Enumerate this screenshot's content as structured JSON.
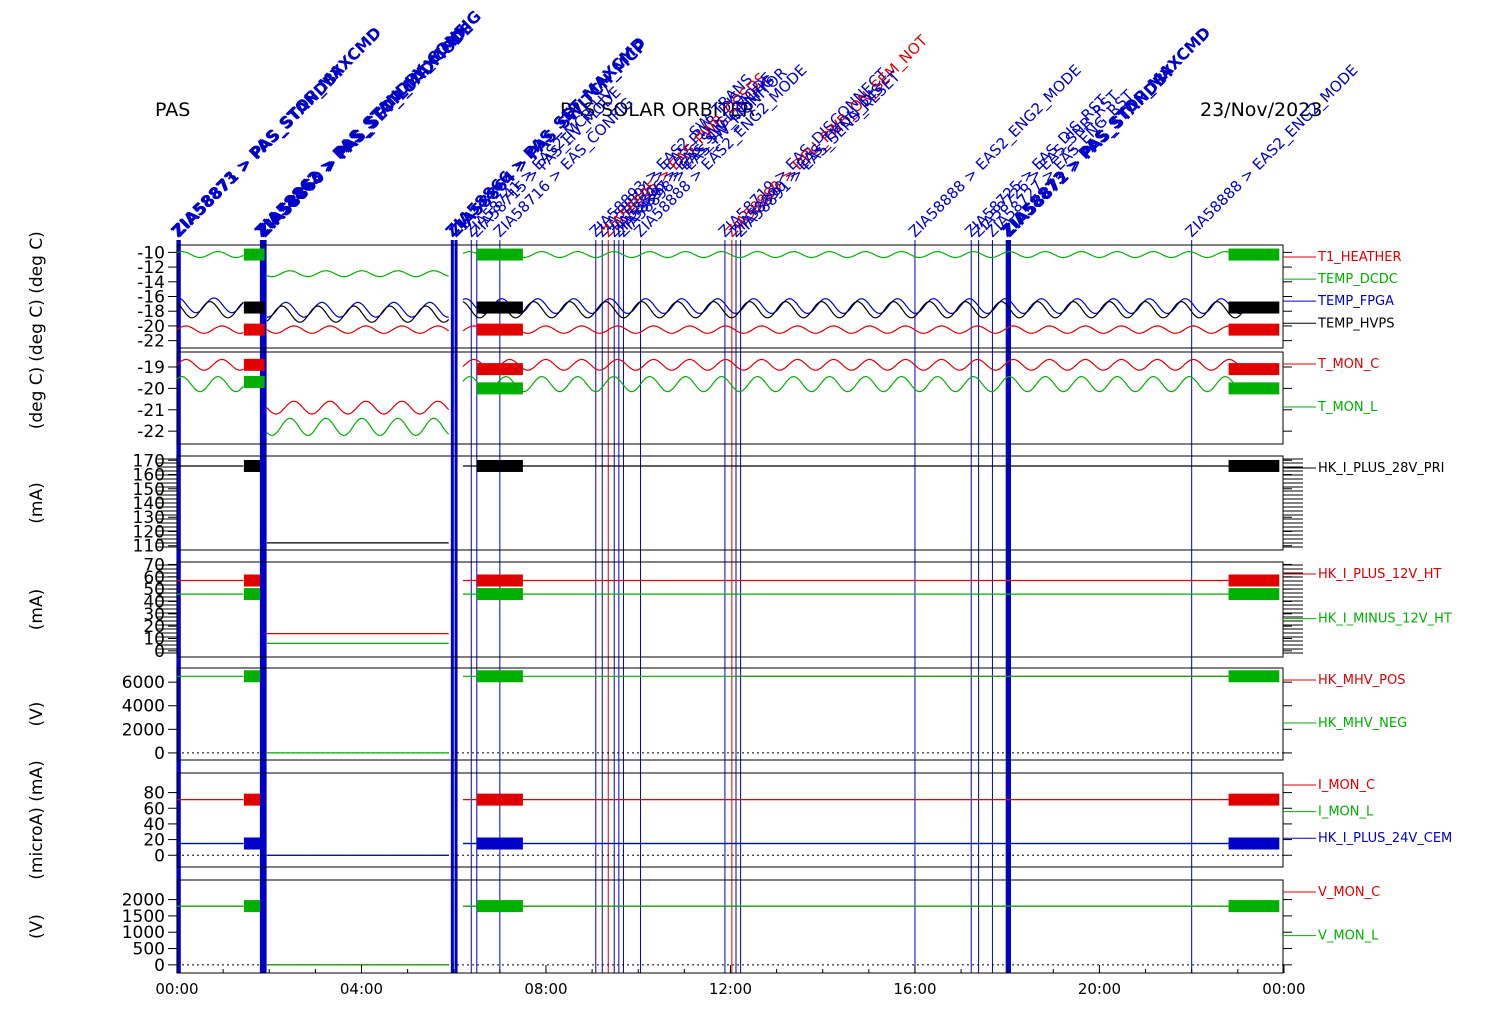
{
  "header": {
    "left": "PAS",
    "center": "PAS SOLAR ORBITER",
    "right": "23/Nov/2023"
  },
  "colors": {
    "red": "#e00000",
    "green": "#00b000",
    "blue": "#0000c8",
    "black": "#000000",
    "event_blue": "#0000c8",
    "event_red": "#e00000"
  },
  "chart_data": {
    "type": "line",
    "x_axis": {
      "unit": "hours",
      "range": [
        0,
        24
      ],
      "ticks": [
        0,
        4,
        8,
        12,
        16,
        20,
        24
      ],
      "tick_labels": [
        "00:00",
        "04:00",
        "08:00",
        "12:00",
        "16:00",
        "20:00",
        "00:00"
      ]
    },
    "events": [
      {
        "t": 0.02,
        "label": "ZIA58873 > PAS_STOP_MAXCMD",
        "color": "blue",
        "bold": true
      },
      {
        "t": 0.05,
        "label": "ZIA58871 > PAS_STANDBY",
        "color": "blue",
        "bold": true
      },
      {
        "t": 1.83,
        "label": "ZIA58862 > PAS_STANDBY_CONFIG",
        "color": "blue",
        "bold": true
      },
      {
        "t": 1.87,
        "label": "ZIA58863 > PAS_STOP_MAXCMD",
        "color": "blue",
        "bold": true
      },
      {
        "t": 1.91,
        "label": "ZIA58860 > PAS_SET_LOADMODE",
        "color": "blue",
        "bold": true
      },
      {
        "t": 5.97,
        "label": "ZIA58866 > PAS_SET_MAXCMD",
        "color": "blue",
        "bold": true
      },
      {
        "t": 6.05,
        "label": "ZIA58864 > PAS_SWITCH_MCP",
        "color": "blue",
        "bold": true
      },
      {
        "t": 6.38,
        "label": "ZIA58741 > EAS2_MCP_HV",
        "color": "blue",
        "bold": false
      },
      {
        "t": 6.5,
        "label": "ZIA58715 > PAS_HV_MODE",
        "color": "blue",
        "bold": false
      },
      {
        "t": 7.0,
        "label": "ZIA58716 > EAS_CONFIG",
        "color": "blue",
        "bold": false
      },
      {
        "t": 9.08,
        "label": "ZIA58893 > EAS2_SW_TRANS",
        "color": "blue",
        "bold": false
      },
      {
        "t": 9.22,
        "label": "ZIA58894 > EAS_PWR_DIS",
        "color": "blue",
        "bold": false
      },
      {
        "t": 9.35,
        "label": "ZIA58895 > EAS_PWR_CCSDS",
        "color": "red",
        "bold": false
      },
      {
        "t": 9.48,
        "label": "ZIA58896 > EAS_SNGL_MODE",
        "color": "blue",
        "bold": false
      },
      {
        "t": 9.58,
        "label": "ZIA58897 > EAS_SW_CONFIG",
        "color": "blue",
        "bold": false
      },
      {
        "t": 9.68,
        "label": "ZIA58898 > EAS_HV_MONITOR",
        "color": "blue",
        "bold": false
      },
      {
        "t": 10.05,
        "label": "ZIA58888 > EAS2_ENG2_MODE",
        "color": "blue",
        "bold": false
      },
      {
        "t": 11.88,
        "label": "ZIA58719 > EAS_DISCONNECT",
        "color": "blue",
        "bold": false
      },
      {
        "t": 12.03,
        "label": "ZIA58889 > DPU_PWR_ON_SEM_NOT",
        "color": "red",
        "bold": false
      },
      {
        "t": 12.12,
        "label": "ZIA58890 > EAS_TMON_DIS",
        "color": "blue",
        "bold": false
      },
      {
        "t": 12.22,
        "label": "ZIA58891 > EAS_SENS_RESET",
        "color": "blue",
        "bold": false
      },
      {
        "t": 16.0,
        "label": "ZIA58888 > EAS2_ENG2_MODE",
        "color": "blue",
        "bold": false
      },
      {
        "t": 17.22,
        "label": "ZIA58725 > EAS_DIS_RST",
        "color": "blue",
        "bold": false
      },
      {
        "t": 17.38,
        "label": "ZIA58726 > EAS_SNR_RST",
        "color": "blue",
        "bold": false
      },
      {
        "t": 17.68,
        "label": "ZIA58727 > EAS_ENG_RST",
        "color": "blue",
        "bold": false
      },
      {
        "t": 18.0,
        "label": "ZIA58873 > PAS_STOP_MAXCMD",
        "color": "blue",
        "bold": true
      },
      {
        "t": 18.05,
        "label": "ZIA58872 > PAS_STANDBY",
        "color": "blue",
        "bold": true
      },
      {
        "t": 22.0,
        "label": "ZIA58888 > EAS2_ENG2_MODE",
        "color": "blue",
        "bold": false
      }
    ],
    "panels": [
      {
        "ylabel": "(deg C) (deg C)",
        "ylim": [
          -23,
          -9
        ],
        "ticks": [
          -10,
          -12,
          -14,
          -16,
          -18,
          -20,
          -22
        ],
        "tick_labels": [
          "-10",
          "-12",
          "-14",
          "-16",
          "-18",
          "-20",
          "-22"
        ],
        "series": [
          {
            "name": "T1_HEATHER",
            "color": "red",
            "segments": [
              [
                0,
                1.45,
                -20.5,
                0.5
              ],
              [
                1.95,
                5.9,
                -20.5,
                0.5
              ],
              [
                6.2,
                23.1,
                -20.5,
                0.5
              ]
            ]
          },
          {
            "name": "TEMP_DCDC",
            "color": "green",
            "segments": [
              [
                0,
                1.45,
                -10.3,
                0.4
              ],
              [
                1.95,
                5.9,
                -12.9,
                0.4
              ],
              [
                6.2,
                23.1,
                -10.3,
                0.4
              ]
            ]
          },
          {
            "name": "TEMP_FPGA",
            "color": "blue",
            "segments": [
              [
                0,
                1.45,
                -17.2,
                1.0
              ],
              [
                1.95,
                5.9,
                -17.8,
                1.0
              ],
              [
                6.2,
                23.1,
                -17.3,
                1.0
              ]
            ]
          },
          {
            "name": "TEMP_HVPS",
            "color": "black",
            "segments": [
              [
                0,
                1.45,
                -17.8,
                1.1
              ],
              [
                1.95,
                5.9,
                -18.4,
                1.1
              ],
              [
                6.2,
                23.1,
                -17.8,
                1.1
              ]
            ]
          }
        ]
      },
      {
        "ylabel": "(deg C)",
        "ylim": [
          -22.6,
          -18.3
        ],
        "ticks": [
          -19,
          -20,
          -21,
          -22
        ],
        "tick_labels": [
          "-19",
          "-20",
          "-21",
          "-22"
        ],
        "series": [
          {
            "name": "T_MON_C",
            "color": "red",
            "segments": [
              [
                0,
                1.45,
                -18.9,
                0.25
              ],
              [
                1.95,
                5.9,
                -20.9,
                0.3
              ],
              [
                6.2,
                23.1,
                -18.9,
                0.25
              ]
            ]
          },
          {
            "name": "T_MON_L",
            "color": "green",
            "segments": [
              [
                0,
                1.45,
                -19.8,
                0.35
              ],
              [
                1.95,
                5.9,
                -21.8,
                0.4
              ],
              [
                6.2,
                23.1,
                -19.8,
                0.35
              ]
            ]
          }
        ]
      },
      {
        "ylabel": "(mA)",
        "ylim": [
          107,
          173
        ],
        "ticks": [
          170,
          160,
          150,
          140,
          130,
          120,
          110
        ],
        "tick_labels": [
          "170",
          "160",
          "150",
          "140",
          "130",
          "120",
          "110"
        ],
        "series": [
          {
            "name": "HK_I_PLUS_28V_PRI",
            "color": "black",
            "segments": [
              [
                0,
                1.45,
                166,
                0
              ],
              [
                1.95,
                5.9,
                112,
                0
              ],
              [
                6.2,
                23.1,
                166,
                0
              ]
            ]
          }
        ]
      },
      {
        "ylabel": "(mA)",
        "ylim": [
          -5,
          72
        ],
        "ticks": [
          70,
          60,
          50,
          40,
          30,
          20,
          10,
          0
        ],
        "tick_labels": [
          "70",
          "60",
          "50",
          "40",
          "30",
          "20",
          "10",
          "0"
        ],
        "series": [
          {
            "name": "HK_I_PLUS_12V_HT",
            "color": "red",
            "segments": [
              [
                0,
                1.45,
                57,
                0
              ],
              [
                1.95,
                5.9,
                14,
                0
              ],
              [
                6.2,
                23.1,
                57,
                0
              ]
            ]
          },
          {
            "name": "HK_I_MINUS_12V_HT",
            "color": "green",
            "segments": [
              [
                0,
                1.45,
                46,
                0
              ],
              [
                1.95,
                5.9,
                6,
                0
              ],
              [
                6.2,
                23.1,
                46,
                0
              ]
            ]
          }
        ]
      },
      {
        "ylabel": "(V)",
        "ylim": [
          -600,
          7200
        ],
        "ticks": [
          6000,
          4000,
          2000,
          0
        ],
        "tick_labels": [
          "6000",
          "4000",
          "2000",
          "0"
        ],
        "series": [
          {
            "name": "HK_MHV_POS",
            "color": "red",
            "segments": [
              [
                12.1,
                23.1,
                6500,
                0
              ]
            ]
          },
          {
            "name": "HK_MHV_NEG",
            "color": "green",
            "segments": [
              [
                0,
                1.45,
                6500,
                0
              ],
              [
                1.95,
                5.9,
                0,
                0
              ],
              [
                6.2,
                23.1,
                6500,
                0
              ]
            ]
          }
        ]
      },
      {
        "ylabel": "(microA) (mA)",
        "ylim": [
          -15,
          105
        ],
        "ticks": [
          80,
          60,
          40,
          20,
          0
        ],
        "tick_labels": [
          "80",
          "60",
          "40",
          "20",
          "0"
        ],
        "series": [
          {
            "name": "I_MON_C",
            "color": "red",
            "segments": [
              [
                0,
                1.45,
                71,
                0
              ],
              [
                1.95,
                5.9,
                0,
                0
              ],
              [
                6.2,
                23.1,
                71,
                0
              ]
            ]
          },
          {
            "name": "I_MON_L",
            "color": "green",
            "segments": [
              [
                0,
                1.45,
                15,
                0
              ],
              [
                1.95,
                5.9,
                0,
                0
              ],
              [
                6.2,
                23.1,
                15,
                0
              ]
            ]
          },
          {
            "name": "HK_I_PLUS_24V_CEM",
            "color": "blue",
            "segments": [
              [
                0,
                1.45,
                15,
                0
              ],
              [
                1.95,
                5.9,
                0,
                0
              ],
              [
                6.2,
                23.1,
                15,
                0
              ]
            ]
          }
        ]
      },
      {
        "ylabel": "(V)",
        "ylim": [
          -250,
          2600
        ],
        "ticks": [
          2000,
          1500,
          1000,
          500,
          0
        ],
        "tick_labels": [
          "2000",
          "1500",
          "1000",
          "500",
          "0"
        ],
        "series": [
          {
            "name": "V_MON_C",
            "color": "red",
            "segments": [
              [
                0,
                1.45,
                1800,
                0
              ],
              [
                1.95,
                5.9,
                0,
                0
              ],
              [
                6.2,
                23.1,
                1800,
                0
              ]
            ]
          },
          {
            "name": "V_MON_L",
            "color": "green",
            "segments": [
              [
                0,
                1.45,
                1800,
                0
              ],
              [
                1.95,
                5.9,
                0,
                0
              ],
              [
                6.2,
                23.1,
                1800,
                0
              ]
            ]
          }
        ]
      }
    ],
    "blocks": [
      {
        "panel": 0,
        "t0": 1.45,
        "t1": 1.9,
        "color": "green",
        "y": -10.3
      },
      {
        "panel": 0,
        "t0": 1.45,
        "t1": 1.9,
        "color": "black",
        "y": -17.5
      },
      {
        "panel": 0,
        "t0": 1.45,
        "t1": 1.9,
        "color": "red",
        "y": -20.5
      },
      {
        "panel": 0,
        "t0": 6.5,
        "t1": 7.5,
        "color": "green",
        "y": -10.3
      },
      {
        "panel": 0,
        "t0": 6.5,
        "t1": 7.5,
        "color": "black",
        "y": -17.5
      },
      {
        "panel": 0,
        "t0": 6.5,
        "t1": 7.5,
        "color": "red",
        "y": -20.5
      },
      {
        "panel": 0,
        "t0": 22.8,
        "t1": 23.9,
        "color": "green",
        "y": -10.3
      },
      {
        "panel": 0,
        "t0": 22.8,
        "t1": 23.9,
        "color": "black",
        "y": -17.5
      },
      {
        "panel": 0,
        "t0": 22.8,
        "t1": 23.9,
        "color": "red",
        "y": -20.5
      },
      {
        "panel": 1,
        "t0": 1.45,
        "t1": 1.9,
        "color": "red",
        "y": -18.9
      },
      {
        "panel": 1,
        "t0": 1.45,
        "t1": 1.9,
        "color": "green",
        "y": -19.7
      },
      {
        "panel": 1,
        "t0": 6.5,
        "t1": 7.5,
        "color": "red",
        "y": -19.1
      },
      {
        "panel": 1,
        "t0": 6.5,
        "t1": 7.5,
        "color": "green",
        "y": -20.0
      },
      {
        "panel": 1,
        "t0": 22.8,
        "t1": 23.9,
        "color": "red",
        "y": -19.1
      },
      {
        "panel": 1,
        "t0": 22.8,
        "t1": 23.9,
        "color": "green",
        "y": -20.0
      },
      {
        "panel": 2,
        "t0": 1.45,
        "t1": 1.8,
        "color": "black",
        "y": 166
      },
      {
        "panel": 2,
        "t0": 6.5,
        "t1": 7.5,
        "color": "black",
        "y": 166
      },
      {
        "panel": 2,
        "t0": 22.8,
        "t1": 23.9,
        "color": "black",
        "y": 166
      },
      {
        "panel": 3,
        "t0": 1.45,
        "t1": 1.8,
        "color": "red",
        "y": 57
      },
      {
        "panel": 3,
        "t0": 1.45,
        "t1": 1.8,
        "color": "green",
        "y": 46
      },
      {
        "panel": 3,
        "t0": 6.5,
        "t1": 7.5,
        "color": "red",
        "y": 57
      },
      {
        "panel": 3,
        "t0": 6.5,
        "t1": 7.5,
        "color": "green",
        "y": 46
      },
      {
        "panel": 3,
        "t0": 22.8,
        "t1": 23.9,
        "color": "red",
        "y": 57
      },
      {
        "panel": 3,
        "t0": 22.8,
        "t1": 23.9,
        "color": "green",
        "y": 46
      },
      {
        "panel": 4,
        "t0": 1.45,
        "t1": 1.8,
        "color": "green",
        "y": 6500
      },
      {
        "panel": 4,
        "t0": 6.5,
        "t1": 7.5,
        "color": "green",
        "y": 6500
      },
      {
        "panel": 4,
        "t0": 22.8,
        "t1": 23.9,
        "color": "green",
        "y": 6500
      },
      {
        "panel": 5,
        "t0": 1.45,
        "t1": 1.8,
        "color": "red",
        "y": 71
      },
      {
        "panel": 5,
        "t0": 1.45,
        "t1": 1.8,
        "color": "blue",
        "y": 15
      },
      {
        "panel": 5,
        "t0": 6.5,
        "t1": 7.5,
        "color": "red",
        "y": 71
      },
      {
        "panel": 5,
        "t0": 6.5,
        "t1": 7.5,
        "color": "blue",
        "y": 15
      },
      {
        "panel": 5,
        "t0": 22.8,
        "t1": 23.9,
        "color": "red",
        "y": 71
      },
      {
        "panel": 5,
        "t0": 22.8,
        "t1": 23.9,
        "color": "blue",
        "y": 15
      },
      {
        "panel": 6,
        "t0": 1.45,
        "t1": 1.8,
        "color": "green",
        "y": 1800
      },
      {
        "panel": 6,
        "t0": 6.5,
        "t1": 7.5,
        "color": "green",
        "y": 1800
      },
      {
        "panel": 6,
        "t0": 22.8,
        "t1": 23.9,
        "color": "green",
        "y": 1800
      }
    ]
  }
}
